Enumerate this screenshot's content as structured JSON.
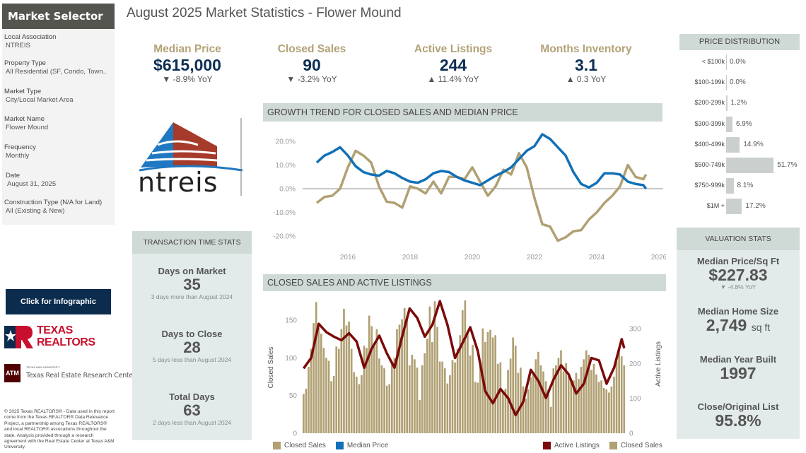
{
  "selector": {
    "title": "Market Selector",
    "items": [
      {
        "label": "Local Association",
        "value": "NTREIS"
      },
      {
        "label": "Property Type",
        "value": "All Residential (SF, Condo, Town.."
      },
      {
        "label": "Market Type",
        "value": "City/Local Market Area"
      },
      {
        "label": "Market Name",
        "value": "Flower Mound"
      },
      {
        "label": "Frequency",
        "value": "Monthly"
      },
      {
        "label": "Date",
        "value": "August 31, 2025"
      },
      {
        "label": "Construction Type (N/A for Land)",
        "value": "All (Existing & New)"
      }
    ]
  },
  "page_title": "August 2025 Market Statistics - Flower Mound",
  "kpis": [
    {
      "label": "Median Price",
      "value": "$615,000",
      "yoy": "▼ -8.9% YoY"
    },
    {
      "label": "Closed Sales",
      "value": "90",
      "yoy": "▼ -3.2% YoY"
    },
    {
      "label": "Active Listings",
      "value": "244",
      "yoy": "▲ 11.4% YoY"
    },
    {
      "label": "Months Inventory",
      "value": "3.1",
      "yoy": "▲ 0.3 YoY"
    }
  ],
  "logos": {
    "ntreis": "ntreis",
    "texas_realtors": "TEXAS REALTORS",
    "tamu_small": "TEXAS A&M UNIVERSITY",
    "tamu": "Texas Real Estate Research Center"
  },
  "infographic_button": "Click for Infographic",
  "footer": "© 2025 Texas REALTORS® - Data used in this report come from the Texas REALTOR® Data Relevance Project, a partnership among Texas REALTORS® and local REALTOR® assocations throughout the state. Analysis provided through a research agreement with the Real Estate Center at Texas A&M University.",
  "transaction_stats": {
    "title": "TRANSACTION TIME STATS",
    "items": [
      {
        "label": "Days on Market",
        "value": "35",
        "sub": "3 days more than August 2024"
      },
      {
        "label": "Days to Close",
        "value": "28",
        "sub": "5 days less than August 2024"
      },
      {
        "label": "Total Days",
        "value": "63",
        "sub": "2 days less than August 2024"
      }
    ]
  },
  "price_distribution": {
    "title": "PRICE DISTRIBUTION",
    "rows": [
      {
        "label": "< $100k",
        "pct": 0.0,
        "text": "0.0%"
      },
      {
        "label": "$100-199k",
        "pct": 0.0,
        "text": "0.0%"
      },
      {
        "label": "$200-299k",
        "pct": 1.2,
        "text": "1.2%"
      },
      {
        "label": "$300-399k",
        "pct": 6.9,
        "text": "6.9%"
      },
      {
        "label": "$400-499k",
        "pct": 14.9,
        "text": "14.9%"
      },
      {
        "label": "$500-749k",
        "pct": 51.7,
        "text": "51.7%"
      },
      {
        "label": "$750-999k",
        "pct": 8.1,
        "text": "8.1%"
      },
      {
        "label": "$1M +",
        "pct": 17.2,
        "text": "17.2%"
      }
    ],
    "bar_color": "#cbd0cf"
  },
  "valuation_stats": {
    "title": "VALUATION STATS",
    "items": [
      {
        "label": "Median Price/Sq Ft",
        "value": "$227.83",
        "sub": "▼ -4.8% YoY"
      },
      {
        "label": "Median Home Size",
        "value": "2,749",
        "unit": "sq ft"
      },
      {
        "label": "Median Year Built",
        "value": "1997"
      },
      {
        "label": "Close/Original List",
        "value": "95.8%"
      }
    ]
  },
  "chart_data": [
    {
      "type": "line",
      "title": "GROWTH TREND FOR CLOSED SALES AND MEDIAN PRICE",
      "xlim": [
        2015,
        2026
      ],
      "x_ticks": [
        "2016",
        "2018",
        "2020",
        "2022",
        "2024",
        "2026"
      ],
      "ylim": [
        -25,
        25
      ],
      "y_ticks": [
        "20.0%",
        "10.0%",
        "0.0%",
        "-10.0%",
        "-20.0%"
      ],
      "y_tick_values": [
        20,
        10,
        0,
        -10,
        -20
      ],
      "x": [
        "2015-01",
        "2015-04",
        "2015-07",
        "2015-10",
        "2016-01",
        "2016-04",
        "2016-07",
        "2016-10",
        "2017-01",
        "2017-04",
        "2017-07",
        "2017-10",
        "2018-01",
        "2018-04",
        "2018-07",
        "2018-10",
        "2019-01",
        "2019-04",
        "2019-07",
        "2019-10",
        "2020-01",
        "2020-04",
        "2020-07",
        "2020-10",
        "2021-01",
        "2021-04",
        "2021-07",
        "2021-10",
        "2022-01",
        "2022-04",
        "2022-07",
        "2022-10",
        "2023-01",
        "2023-04",
        "2023-07",
        "2023-10",
        "2024-01",
        "2024-04",
        "2024-07",
        "2024-10",
        "2025-01",
        "2025-04",
        "2025-07",
        "2025-08"
      ],
      "series": [
        {
          "name": "Closed Sales",
          "color": "#b0a073",
          "values": [
            -6,
            -3.5,
            -3,
            0,
            9,
            16,
            14,
            11,
            1,
            -5.5,
            -6,
            -8,
            1,
            0,
            -2,
            3,
            -2,
            5,
            5,
            4,
            9,
            3,
            -3,
            1,
            8,
            6,
            15,
            9,
            -4,
            -15,
            -16,
            -22,
            -20.5,
            -18,
            -17.5,
            -13,
            -10,
            -6,
            -3,
            1,
            10,
            5,
            4,
            6
          ]
        },
        {
          "name": "Median Price",
          "color": "#1170b8",
          "values": [
            11,
            14,
            15.5,
            17.5,
            14,
            9.5,
            7,
            6,
            5.5,
            7.5,
            6.5,
            4.5,
            3,
            2.5,
            4,
            6.5,
            7.5,
            7,
            5,
            3.5,
            2.5,
            1.5,
            3.5,
            5.5,
            7,
            9,
            12.5,
            16,
            18,
            23,
            21,
            17.5,
            14,
            7,
            2,
            0.5,
            2.5,
            6.5,
            6.5,
            6,
            3,
            2,
            1.5,
            0
          ]
        }
      ]
    },
    {
      "type": "bar",
      "title": "CLOSED SALES AND ACTIVE LISTINGS",
      "ylabel": "Closed Sales",
      "y2label": "Active Listings",
      "ylim": [
        0,
        185
      ],
      "y_ticks": [
        "0",
        "50",
        "100",
        "150"
      ],
      "y_tick_values": [
        0,
        50,
        100,
        150
      ],
      "y2lim": [
        0,
        375
      ],
      "y2_ticks": [
        "0",
        "100",
        "200",
        "300"
      ],
      "y2_tick_values": [
        0,
        100,
        200,
        300
      ],
      "start": "2015-01",
      "end": "2025-08",
      "closed_sales": {
        "name": "Closed Sales",
        "color": "#b0a073",
        "values": [
          52,
          59,
          88,
          112,
          146,
          174,
          140,
          132,
          113,
          100,
          96,
          69,
          76,
          115,
          112,
          138,
          165,
          143,
          148,
          112,
          81,
          75,
          65,
          77,
          116,
          113,
          156,
          142,
          115,
          138,
          99,
          90,
          86,
          63,
          65,
          92,
          100,
          138,
          144,
          151,
          166,
          155,
          90,
          104,
          98,
          87,
          44,
          90,
          106,
          125,
          168,
          121,
          175,
          141,
          95,
          95,
          86,
          66,
          77,
          97,
          94,
          112,
          130,
          163,
          176,
          136,
          103,
          117,
          68,
          67,
          95,
          139,
          121,
          134,
          137,
          127,
          130,
          92,
          94,
          54,
          59,
          84,
          99,
          127,
          116,
          80,
          87,
          62,
          46,
          58,
          74,
          81,
          98,
          108,
          90,
          82,
          69,
          58,
          35,
          86,
          90,
          100,
          110,
          82,
          93,
          78,
          69,
          70,
          80,
          72,
          88,
          98,
          110,
          104,
          84,
          92,
          78,
          68,
          70,
          60,
          58,
          54,
          62,
          75,
          95,
          112,
          102,
          90
        ]
      },
      "active_listings": {
        "name": "Active Listings",
        "color": "#7b0a0a",
        "x": [
          "2015-01",
          "2015-04",
          "2015-07",
          "2015-10",
          "2016-01",
          "2016-04",
          "2016-07",
          "2016-10",
          "2017-01",
          "2017-04",
          "2017-07",
          "2017-10",
          "2018-01",
          "2018-04",
          "2018-07",
          "2018-10",
          "2019-01",
          "2019-04",
          "2019-07",
          "2019-10",
          "2020-01",
          "2020-04",
          "2020-07",
          "2020-10",
          "2021-01",
          "2021-04",
          "2021-07",
          "2021-10",
          "2022-01",
          "2022-04",
          "2022-07",
          "2022-10",
          "2023-01",
          "2023-04",
          "2023-07",
          "2023-10",
          "2024-01",
          "2024-04",
          "2024-07",
          "2024-10",
          "2025-01",
          "2025-04",
          "2025-07",
          "2025-08"
        ],
        "values": [
          186,
          216,
          314,
          290,
          277,
          267,
          287,
          263,
          188,
          243,
          280,
          229,
          188,
          277,
          358,
          331,
          277,
          311,
          379,
          311,
          216,
          260,
          304,
          236,
          120,
          86,
          127,
          101,
          52,
          90,
          182,
          150,
          101,
          154,
          195,
          169,
          114,
          142,
          216,
          209,
          142,
          188,
          270,
          244
        ]
      },
      "legend_left": [
        {
          "label": "Closed Sales",
          "color": "#b0a073"
        },
        {
          "label": "Median Price",
          "color": "#1170b8"
        }
      ],
      "legend_right": [
        {
          "label": "Active Listings",
          "color": "#7b0a0a"
        },
        {
          "label": "Closed Sales",
          "color": "#b0a073"
        }
      ]
    }
  ]
}
